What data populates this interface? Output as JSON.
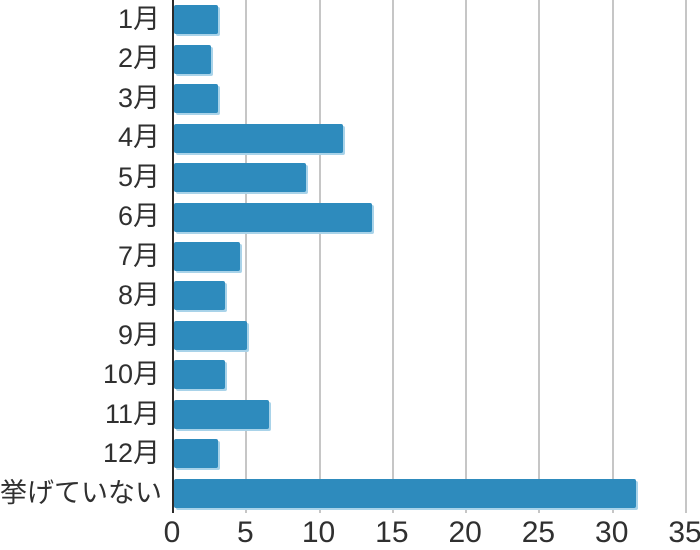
{
  "chart_data": {
    "type": "bar",
    "orientation": "horizontal",
    "title": "",
    "xlabel": "",
    "ylabel": "",
    "categories": [
      "1月",
      "2月",
      "3月",
      "4月",
      "5月",
      "6月",
      "7月",
      "8月",
      "9月",
      "10月",
      "11月",
      "12月",
      "挙げていない"
    ],
    "values": [
      3.0,
      2.5,
      3.0,
      11.5,
      9.0,
      13.5,
      4.5,
      3.5,
      5.0,
      3.5,
      6.5,
      3.0,
      31.5
    ],
    "xlim": [
      0,
      35
    ],
    "x_ticks": [
      0,
      5,
      10,
      15,
      20,
      25,
      30,
      35
    ],
    "grid": true,
    "legend": false,
    "colors": {
      "bar": "#2e8bbd",
      "bar_edge_highlight": "#a9d3e9",
      "gridline": "#c6c6c6",
      "axis_line": "#2b2b2b",
      "text": "#303030"
    }
  }
}
